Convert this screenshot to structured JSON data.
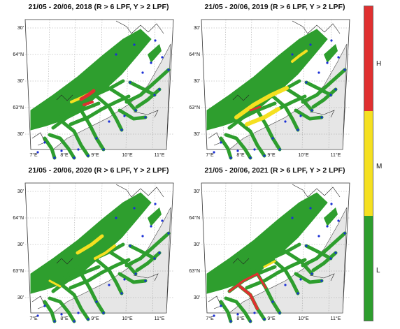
{
  "panels": [
    {
      "title": "21/05 - 20/06, 2018 (R > 6 LPF, Y > 2 LPF)",
      "year": 2018
    },
    {
      "title": "21/05 - 20/06, 2019 (R > 6 LPF, Y > 2 LPF)",
      "year": 2019
    },
    {
      "title": "21/05 - 20/06, 2020 (R > 6 LPF, Y > 2 LPF)",
      "year": 2020
    },
    {
      "title": "21/05 - 20/06, 2021 (R > 6 LPF, Y > 2 LPF)",
      "year": 2021
    }
  ],
  "axes": {
    "lon_ticks": [
      "7°E",
      "8°E",
      "9°E",
      "10°E",
      "11°E"
    ],
    "lat_ticks": [
      "30'",
      "64°N",
      "30'",
      "63°N",
      "30'"
    ]
  },
  "legend": {
    "levels": [
      {
        "label": "H",
        "color": "#e03030"
      },
      {
        "label": "M",
        "color": "#f5e020"
      },
      {
        "label": "L",
        "color": "#2e9e2e"
      }
    ]
  },
  "colors": {
    "low": "#2e9e2e",
    "medium": "#f5e020",
    "high": "#e03030",
    "land": "#e6e6e6",
    "sea": "#ffffff",
    "stations": "#1a2fd6"
  }
}
